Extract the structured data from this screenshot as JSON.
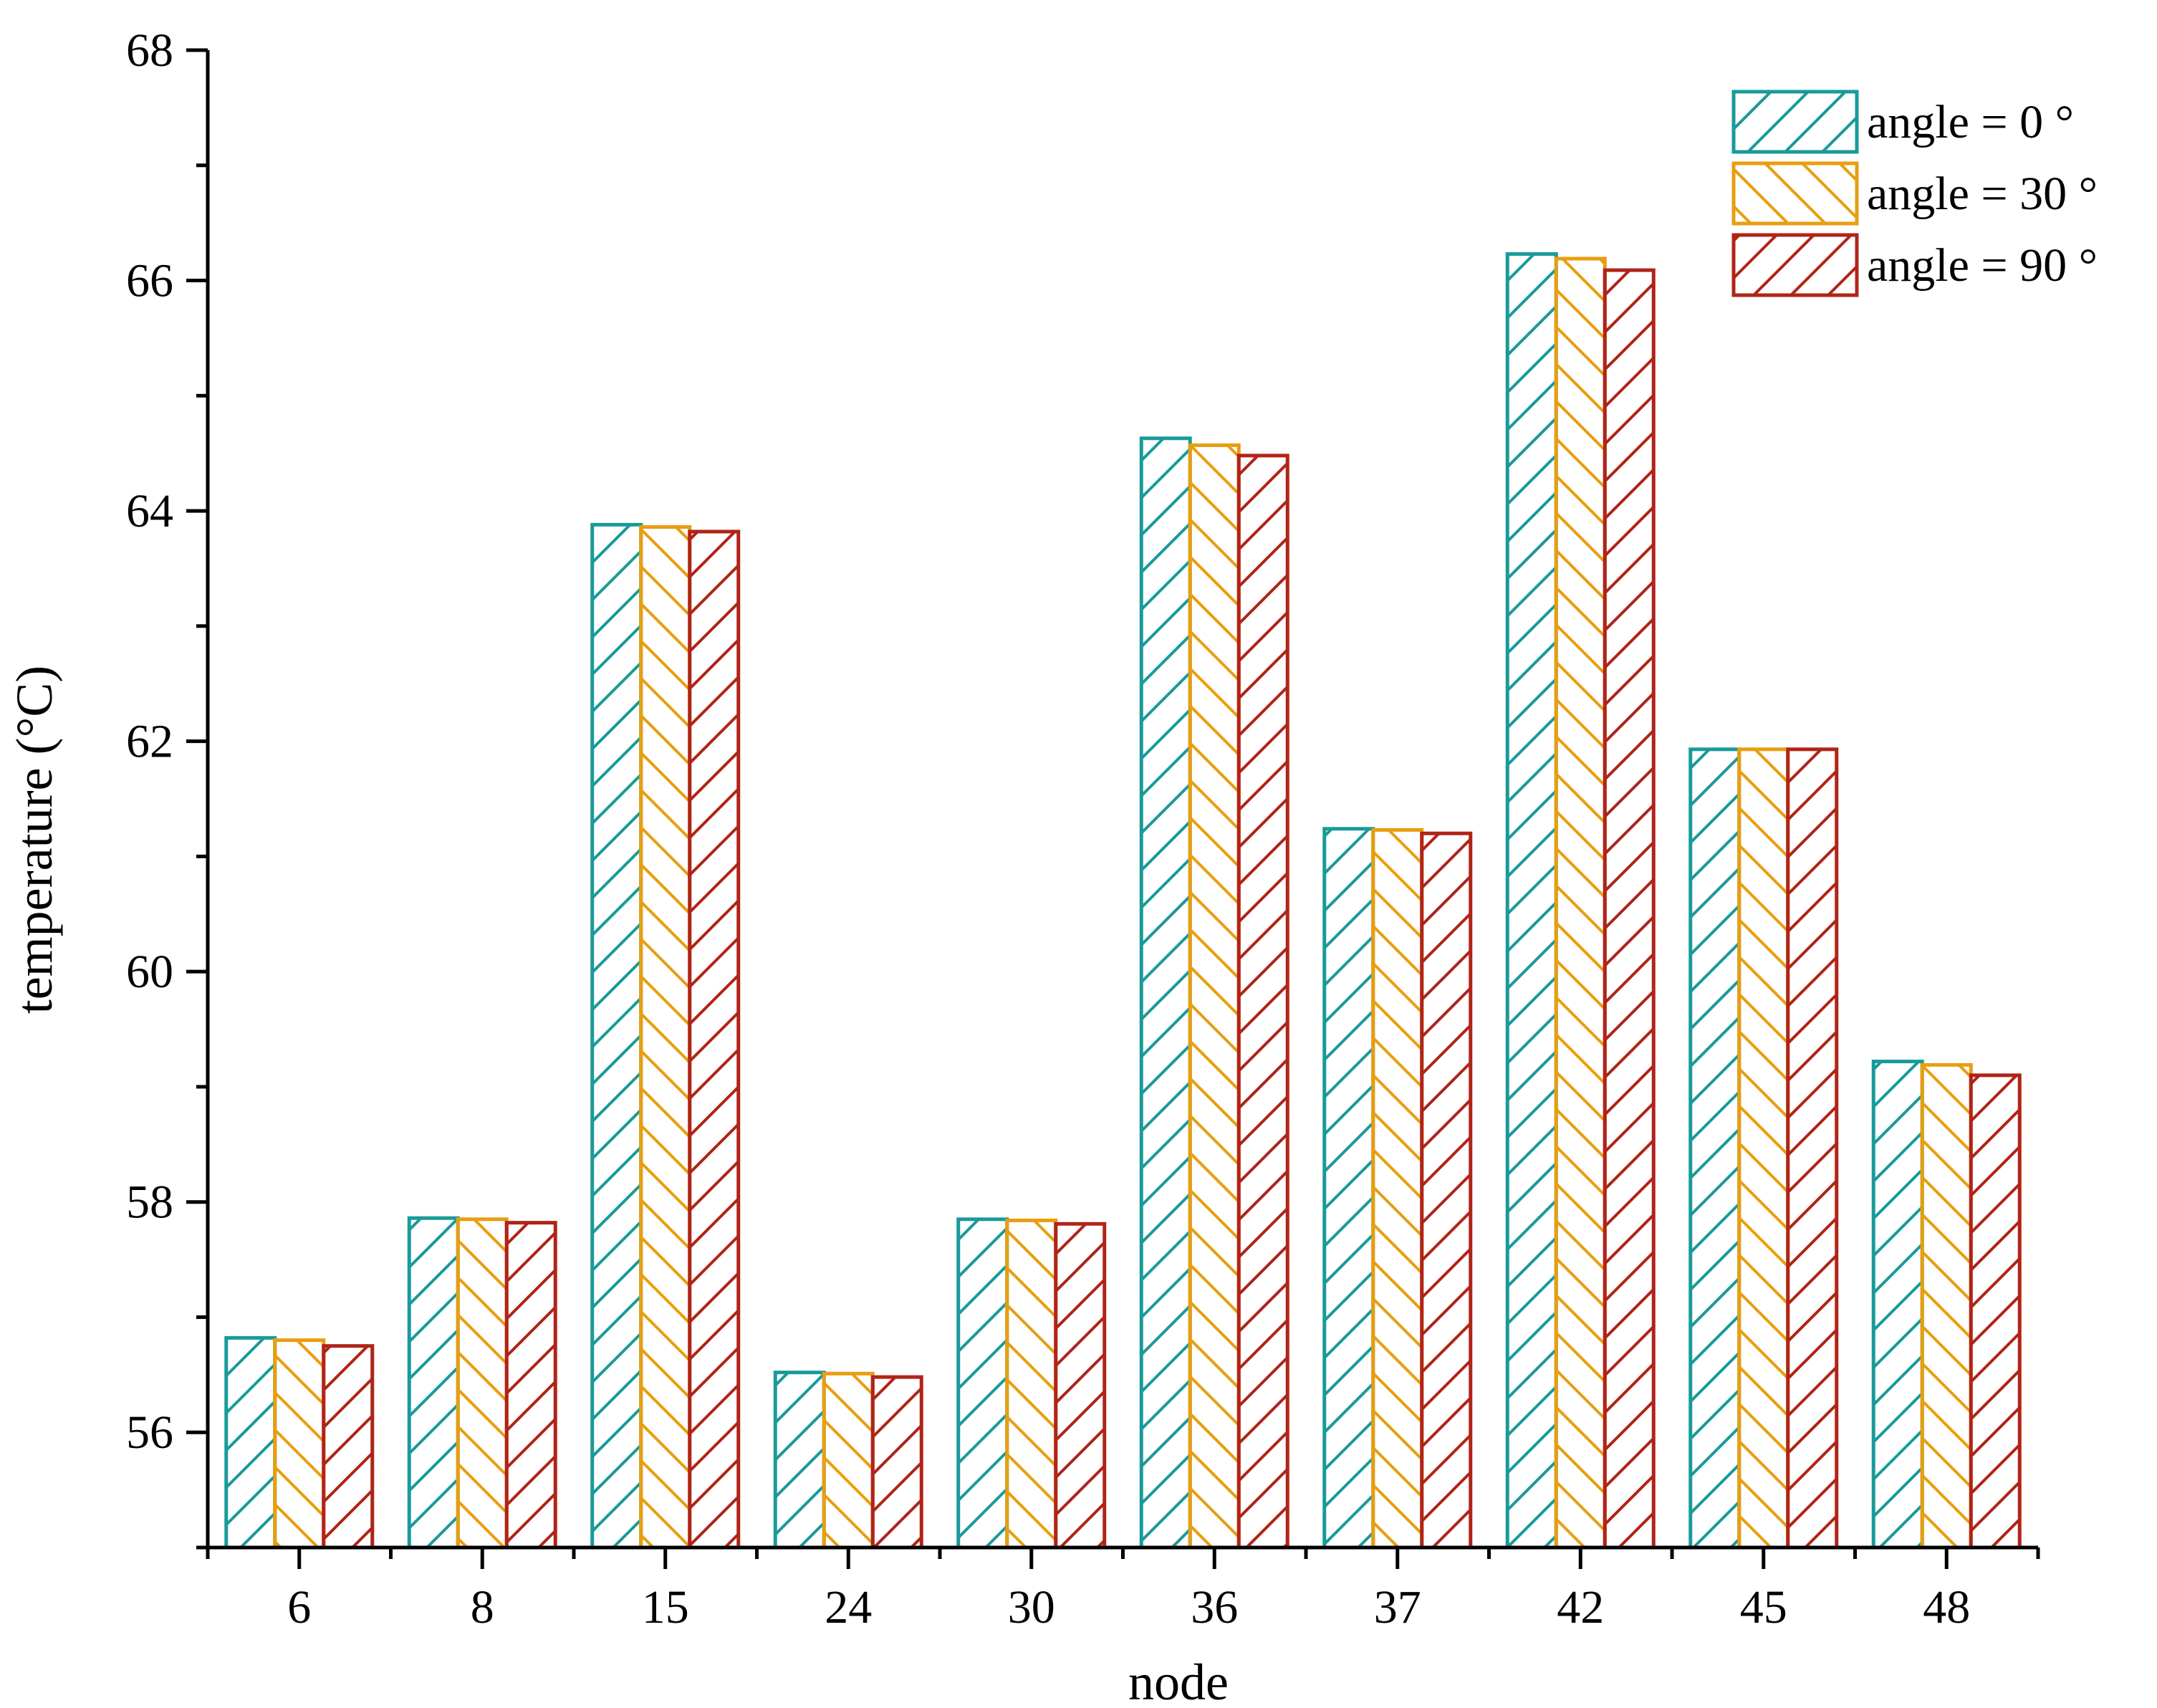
{
  "chart_data": {
    "type": "bar",
    "title": "",
    "xlabel": "node",
    "ylabel": "temperature (°C)",
    "ylim": [
      55,
      68
    ],
    "yticks": [
      56,
      58,
      60,
      62,
      64,
      66,
      68
    ],
    "categories": [
      "6",
      "8",
      "15",
      "24",
      "30",
      "36",
      "37",
      "42",
      "45",
      "48"
    ],
    "series": [
      {
        "name": "angle = 0 °",
        "color": "#1a9a9a",
        "hatch": "forward",
        "values": [
          56.82,
          57.86,
          63.88,
          56.52,
          57.85,
          64.63,
          61.24,
          66.23,
          61.93,
          59.22
        ]
      },
      {
        "name": "angle = 30 °",
        "color": "#e89e10",
        "hatch": "backward",
        "values": [
          56.8,
          57.85,
          63.86,
          56.51,
          57.84,
          64.57,
          61.23,
          66.19,
          61.93,
          59.19
        ]
      },
      {
        "name": "angle = 90 °",
        "color": "#b02418",
        "hatch": "forward",
        "values": [
          56.75,
          57.82,
          63.82,
          56.48,
          57.81,
          64.48,
          61.2,
          66.09,
          61.93,
          59.1
        ]
      }
    ],
    "grid": false,
    "legend_position": "top-right"
  }
}
